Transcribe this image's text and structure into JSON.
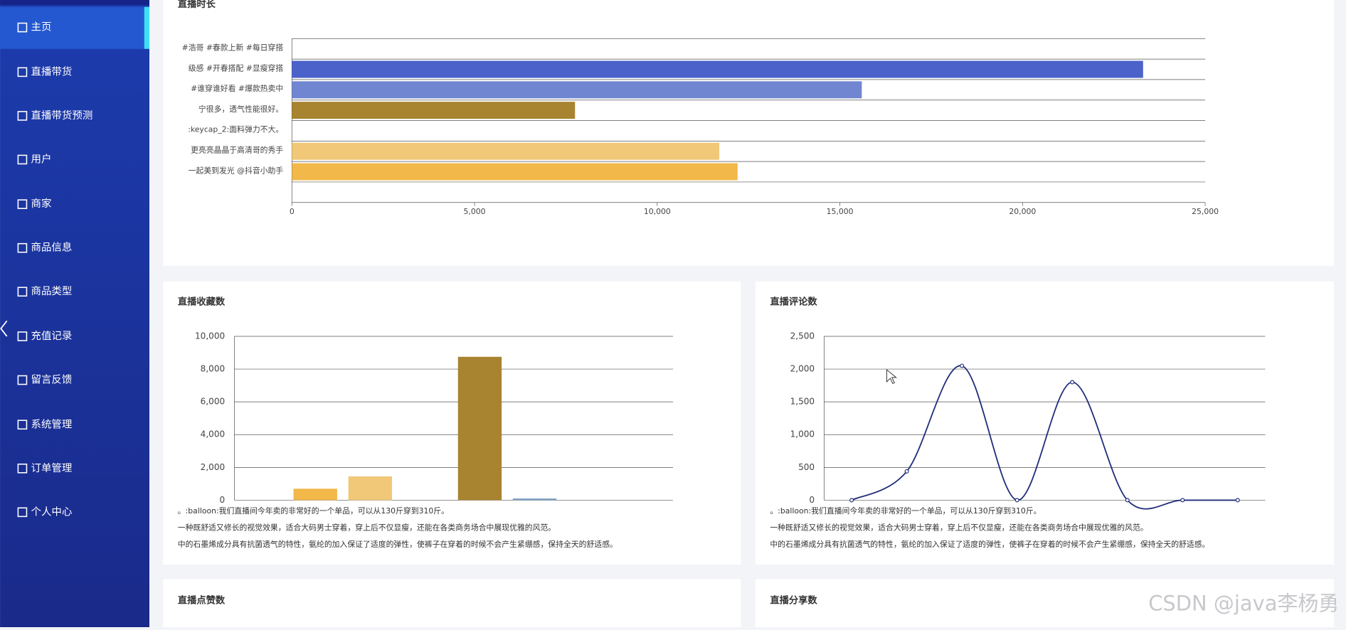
{
  "sidebar": {
    "menu": [
      "主页",
      "直播带货",
      "直播带货预测",
      "用户",
      "商家",
      "商品信息",
      "商品类型",
      "充值记录",
      "留言反馈",
      "系统管理",
      "订单管理",
      "个人中心"
    ]
  },
  "charts": [
    {
      "type": "hbar",
      "title": "直播时长",
      "categories": [
        "#浩哥 #春款上新 #每日穿搭",
        "级感 #开春搭配 #显瘦穿搭",
        "#谁穿谁好看 #爆款热卖中",
        "宁很多，透气性能很好。",
        ":keycap_2:面料弹力不大。",
        "更亮亮晶晶于高清哥的秀手",
        "一起美到发光 @抖音小助手",
        null
      ],
      "values": [
        0,
        23300,
        15600,
        7750,
        0,
        11700,
        12200,
        0
      ],
      "colors": [
        "#4a62c9",
        "#4a62c9",
        "#7186d0",
        "#a88330",
        "#a88330",
        "#f0c878",
        "#f2b84a",
        "#f2b84a"
      ],
      "xlim": [
        0,
        25000
      ],
      "xticks": [
        0,
        {
          "value": 5000,
          "label": "5,000"
        },
        {
          "value": 10000,
          "label": "10,000"
        },
        {
          "value": 15000,
          "label": "15,000"
        },
        {
          "value": 20000,
          "label": "20,000"
        },
        {
          "value": 25000,
          "label": "25,000"
        }
      ]
    },
    {
      "type": "bar",
      "title": "直播收藏数",
      "values": [
        0,
        700,
        1450,
        0,
        8750,
        100,
        0,
        0
      ],
      "colors": [
        "#f2b84a",
        "#f2b84a",
        "#f0c878",
        "#a88330",
        "#a88330",
        "#7a9fc4",
        "#7a9fc4",
        "#7a9fc4"
      ],
      "ylim": [
        0,
        10000
      ],
      "yticks": [
        0,
        {
          "value": 2000,
          "label": "2,000"
        },
        {
          "value": 4000,
          "label": "4,000"
        },
        {
          "value": 6000,
          "label": "6,000"
        },
        {
          "value": 8000,
          "label": "8,000"
        },
        {
          "value": 10000,
          "label": "10,000"
        }
      ],
      "notes": [
        "。:balloon:我们直播间今年卖的非常好的一个单品，可以从130斤穿到310斤。",
        "一种既舒适又修长的视觉效果，适合大码男士穿着，穿上后不仅显瘦，还能在各类商务场合中展现优雅的风范。",
        "中的石墨烯成分具有抗菌透气的特性，氨纶的加入保证了适度的弹性，使裤子在穿着的时候不会产生紧绷感，保持全天的舒适感。"
      ]
    },
    {
      "type": "line",
      "title": "直播评论数",
      "values": [
        0,
        440,
        2050,
        0,
        1800,
        0,
        0,
        0
      ],
      "color": "#1f2d7a",
      "ylim": [
        0,
        2500
      ],
      "yticks": [
        0,
        500,
        {
          "value": 1000,
          "label": "1,000"
        },
        {
          "value": 1500,
          "label": "1,500"
        },
        {
          "value": 2000,
          "label": "2,000"
        },
        {
          "value": 2500,
          "label": "2,500"
        }
      ],
      "notes": [
        "。:balloon:我们直播间今年卖的非常好的一个单品，可以从130斤穿到310斤。",
        "一种既舒适又修长的视觉效果，适合大码男士穿着，穿上后不仅显瘦，还能在各类商务场合中展现优雅的风范。",
        "中的石墨烯成分具有抗菌透气的特性，氨纶的加入保证了适度的弹性，使裤子在穿着的时候不会产生紧绷感，保持全天的舒适感。"
      ]
    },
    {
      "type": "empty",
      "title": "直播点赞数"
    },
    {
      "type": "empty",
      "title": "直播分享数"
    }
  ],
  "watermark": "CSDN @java李杨勇"
}
